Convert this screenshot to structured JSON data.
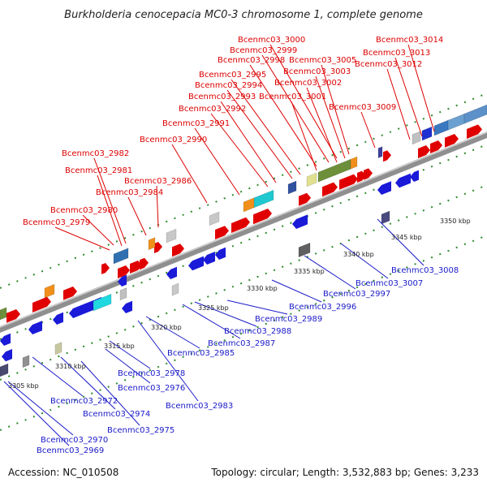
{
  "title": "Burkholderia cenocepacia MC0-3 chromosome 1, complete genome",
  "footer": {
    "accession": "Accession: NC_010508",
    "summary": "Topology: circular; Length: 3,532,883 bp; Genes: 3,233"
  },
  "colors": {
    "forward_label": "#dd0000",
    "reverse_label": "#1a1ac8",
    "backbone": "#9a9a9a",
    "tick_dot": "#2e8b2e"
  },
  "scale_ticks": [
    "3305 kbp",
    "3310 kbp",
    "3315 kbp",
    "3320 kbp",
    "3325 kbp",
    "3330 kbp",
    "3335 kbp",
    "3340 kbp",
    "3345 kbp",
    "3350 kbp"
  ],
  "top_labels": [
    "Bcenmc03_3014",
    "Bcenmc03_3013",
    "Bcenmc03_3012",
    "Bcenmc03_3000",
    "Bcenmc03_2999",
    "Bcenmc03_2998",
    "Bcenmc03_3005",
    "Bcenmc03_3003",
    "Bcenmc03_2995",
    "Bcenmc03_2994",
    "Bcenmc03_3002",
    "Bcenmc03_2993",
    "Bcenmc03_3001",
    "Bcenmc03_2992",
    "Bcenmc03_3009",
    "Bcenmc03_2991",
    "Bcenmc03_2990",
    "Bcenmc03_2982",
    "Bcenmc03_2981",
    "Bcenmc03_2986",
    "Bcenmc03_2984",
    "Bcenmc03_2980",
    "Bcenmc03_2979"
  ],
  "bottom_labels": [
    "Bcenmc03_3008",
    "Bcenmc03_3007",
    "Bcenmc03_2997",
    "Bcenmc03_2996",
    "Bcenmc03_2989",
    "Bcenmc03_2988",
    "Bcenmc03_2987",
    "Bcenmc03_2985",
    "Bcenmc03_2978",
    "Bcenmc03_2976",
    "Bcenmc03_2972",
    "Bcenmc03_2974",
    "Bcenmc03_2983",
    "Bcenmc03_2975",
    "Bcenmc03_2970",
    "Bcenmc03_2969"
  ]
}
